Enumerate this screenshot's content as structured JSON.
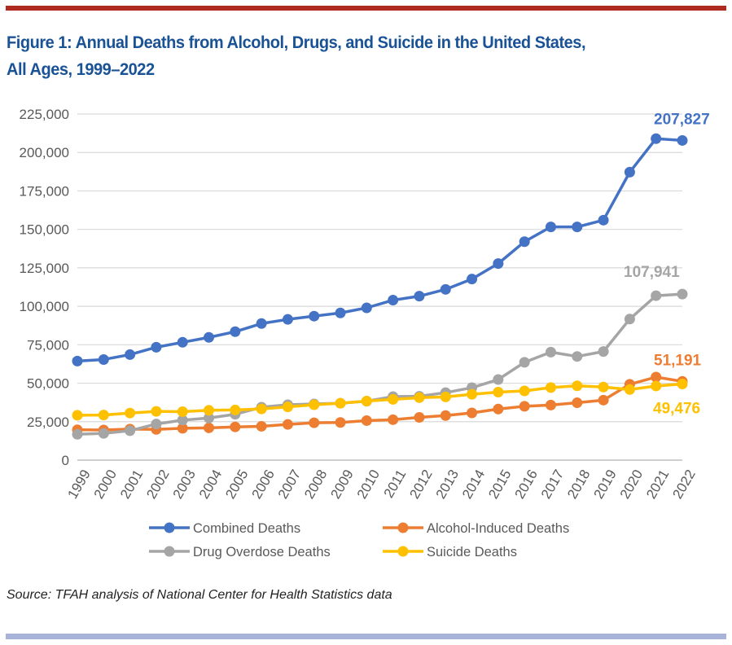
{
  "figure": {
    "title_line1": "Figure 1: Annual Deaths from Alcohol, Drugs, and Suicide in the United States,",
    "title_line2": "All Ages, 1999–2022",
    "source": "Source: TFAH analysis of National Center for Health Statistics data",
    "colors": {
      "top_rule": "#ae2a1f",
      "bottom_rule": "#a7b3d8",
      "title": "#1a5296"
    }
  },
  "chart_data": {
    "type": "line",
    "title": "Figure 1: Annual Deaths from Alcohol, Drugs, and Suicide in the United States, All Ages, 1999–2022",
    "xlabel": "",
    "ylabel": "",
    "x": [
      "1999",
      "2000",
      "2001",
      "2002",
      "2003",
      "2004",
      "2005",
      "2006",
      "2007",
      "2008",
      "2009",
      "2010",
      "2011",
      "2012",
      "2013",
      "2014",
      "2015",
      "2016",
      "2017",
      "2018",
      "2019",
      "2020",
      "2021",
      "2022"
    ],
    "ylim": [
      0,
      225000
    ],
    "yticks": [
      0,
      25000,
      50000,
      75000,
      100000,
      125000,
      150000,
      175000,
      200000,
      225000
    ],
    "ytick_labels": [
      "0",
      "25,000",
      "50,000",
      "75,000",
      "100,000",
      "125,000",
      "150,000",
      "175,000",
      "200,000",
      "225,000"
    ],
    "grid": true,
    "legend_position": "bottom",
    "series": [
      {
        "name": "Combined Deaths",
        "color": "#4472c4",
        "values": [
          64400,
          65400,
          68600,
          73400,
          76600,
          79800,
          83500,
          88800,
          91500,
          93600,
          95700,
          99000,
          104000,
          106600,
          111000,
          117700,
          127800,
          142000,
          151600,
          151600,
          156000,
          187200,
          209000,
          207827
        ],
        "end_label": "207,827"
      },
      {
        "name": "Alcohol-Induced Deaths",
        "color": "#ed7d31",
        "values": [
          19700,
          19600,
          20200,
          20000,
          20700,
          21000,
          21600,
          22000,
          23200,
          24300,
          24500,
          25700,
          26300,
          27800,
          29000,
          30700,
          33200,
          35000,
          35800,
          37300,
          39000,
          49300,
          54000,
          51191
        ],
        "end_label": "51,191"
      },
      {
        "name": "Drug Overdose Deaths",
        "color": "#a5a5a5",
        "values": [
          16800,
          17400,
          19100,
          23500,
          26000,
          27400,
          29800,
          34400,
          36000,
          36500,
          37000,
          38300,
          41300,
          41500,
          43900,
          47100,
          52400,
          63600,
          70200,
          67400,
          70600,
          91700,
          106900,
          107941
        ],
        "end_label": "107,941"
      },
      {
        "name": "Suicide Deaths",
        "color": "#ffc000",
        "values": [
          29200,
          29300,
          30600,
          31700,
          31500,
          32400,
          32600,
          33300,
          34600,
          36000,
          37000,
          38400,
          39500,
          40600,
          41100,
          42800,
          44200,
          45000,
          47200,
          48300,
          47500,
          45900,
          48200,
          49476
        ],
        "end_label": "49,476"
      }
    ]
  }
}
